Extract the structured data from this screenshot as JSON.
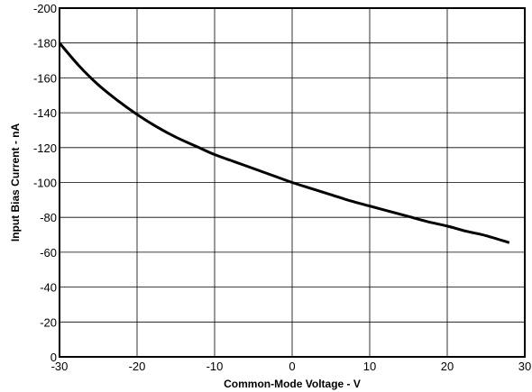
{
  "chart_data": {
    "type": "line",
    "title": "",
    "xlabel": "Common-Mode Voltage - V",
    "ylabel": "Input Bias Current - nA",
    "xlim": [
      -30,
      30
    ],
    "ylim": [
      0,
      -200
    ],
    "y_axis_inverted": true,
    "x_ticks": [
      -30,
      -20,
      -10,
      0,
      10,
      20,
      30
    ],
    "y_ticks": [
      0,
      -20,
      -40,
      -60,
      -80,
      -100,
      -120,
      -140,
      -160,
      -180,
      -200
    ],
    "grid": true,
    "legend": "none",
    "line_color": "#000000",
    "series": [
      {
        "x": [
          -30,
          -27.5,
          -25,
          -22.5,
          -20,
          -17.5,
          -15,
          -12.5,
          -10,
          -7.5,
          -5,
          -2.5,
          0,
          2.5,
          5,
          7.5,
          10,
          12.5,
          15,
          17.5,
          20,
          22.5,
          25,
          28
        ],
        "values": [
          -180,
          -167,
          -156,
          -147,
          -139,
          -132,
          -126,
          -121,
          -116,
          -112,
          -108,
          -104,
          -100,
          -96.5,
          -93,
          -89.5,
          -86.5,
          -83.5,
          -80.5,
          -77.5,
          -75,
          -72,
          -69.5,
          -65.5
        ]
      }
    ]
  }
}
